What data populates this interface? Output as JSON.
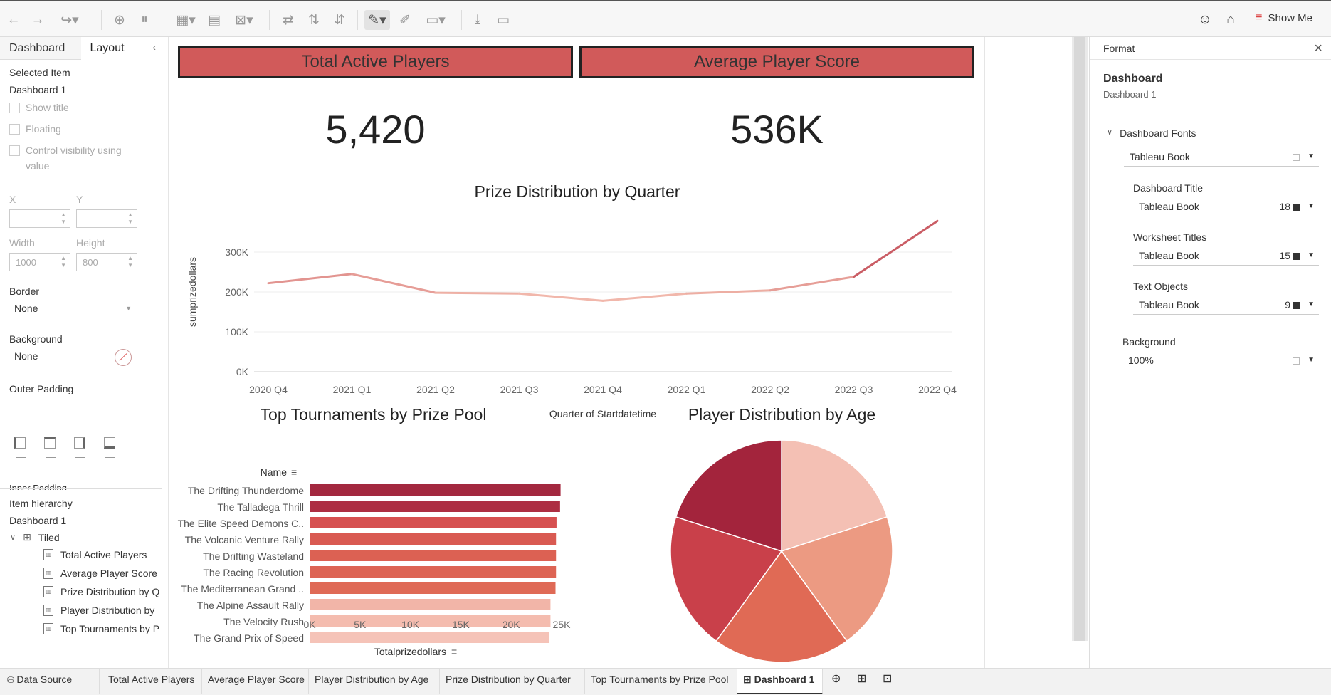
{
  "toolbar": {
    "show_me_label": "Show Me",
    "icons": [
      "back-icon",
      "forward-icon",
      "redo-icon",
      "new-datasource-icon",
      "pause-icon",
      "new-worksheet-icon",
      "duplicate-icon",
      "clear-icon",
      "swap-icon",
      "sort-asc-icon",
      "sort-desc-icon",
      "highlight-icon",
      "annotate-icon",
      "fit-icon",
      "download-icon",
      "presentation-icon",
      "share-icon",
      "pin-icon"
    ]
  },
  "left_panel": {
    "tabs": [
      "Dashboard",
      "Layout"
    ],
    "selected_item_heading": "Selected Item",
    "selected_item_value": "Dashboard 1",
    "show_title": "Show title",
    "floating": "Floating",
    "control_visibility": "Control visibility using value",
    "x_label": "X",
    "y_label": "Y",
    "width_label": "Width",
    "height_label": "Height",
    "width_value": "1000",
    "height_value": "800",
    "border_label": "Border",
    "border_value": "None",
    "background_label": "Background",
    "background_value": "None",
    "outer_padding_label": "Outer Padding",
    "inner_padding_label": "Inner Padding",
    "hierarchy_heading": "Item hierarchy",
    "hierarchy_root": "Dashboard 1",
    "tiled": "Tiled",
    "items": [
      "Total Active Players",
      "Average Player Score",
      "Prize Distribution by Q",
      "Player Distribution by",
      "Top Tournaments by P"
    ]
  },
  "dashboard": {
    "kpi1_title": "Total Active Players",
    "kpi1_value": "5,420",
    "kpi2_title": "Average Player Score",
    "kpi2_value": "536K",
    "line_title": "Prize Distribution by Quarter",
    "bar_title": "Top Tournaments by Prize Pool",
    "pie_title": "Player Distribution by Age"
  },
  "chart_data": [
    {
      "type": "line",
      "title": "Prize Distribution by Quarter",
      "categories": [
        "2020 Q4",
        "2021 Q1",
        "2021 Q2",
        "2021 Q3",
        "2021 Q4",
        "2022 Q1",
        "2022 Q2",
        "2022 Q3",
        "2022 Q4"
      ],
      "values": [
        222000,
        245000,
        198000,
        196000,
        178000,
        196000,
        204000,
        238000,
        378000
      ],
      "xlabel": "Quarter of Startdatetime",
      "ylabel": "sumprizedollars",
      "yticks": [
        "0K",
        "100K",
        "200K",
        "300K"
      ],
      "ylim": [
        0,
        400000
      ]
    },
    {
      "type": "bar",
      "title": "Top Tournaments by Prize Pool",
      "header": "Name",
      "categories": [
        "The Drifting Thunderdome",
        "The Talladega Thrill",
        "The Elite Speed Demons C..",
        "The Volcanic Venture Rally",
        "The Drifting Wasteland",
        "The Racing Revolution",
        "The Mediterranean Grand ..",
        "The Alpine Assault Rally",
        "The Velocity Rush",
        "The Grand Prix of Speed"
      ],
      "values": [
        24900,
        24850,
        24500,
        24450,
        24450,
        24450,
        24400,
        23900,
        23900,
        23800
      ],
      "colors": [
        "#a3283f",
        "#ad2e42",
        "#d65050",
        "#d95a52",
        "#dc6153",
        "#dd6454",
        "#df6a56",
        "#f2b5a8",
        "#f4bcaf",
        "#f5c3b8"
      ],
      "xlabel": "Totalprizedollars",
      "xticks": [
        "0K",
        "5K",
        "10K",
        "15K",
        "20K",
        "25K"
      ],
      "xlim": [
        0,
        25000
      ]
    },
    {
      "type": "pie",
      "title": "Player Distribution by Age",
      "values": [
        20,
        20,
        20,
        20,
        20
      ],
      "colors": [
        "#f4c0b4",
        "#ec9a82",
        "#e06a55",
        "#c9404a",
        "#a3243c"
      ]
    }
  ],
  "format_panel": {
    "header": "Format",
    "title": "Dashboard",
    "subtitle": "Dashboard 1",
    "fonts_heading": "Dashboard Fonts",
    "font_all": "Tableau Book",
    "dash_title_label": "Dashboard Title",
    "dash_title_font": "Tableau Book",
    "dash_title_size": "18",
    "ws_titles_label": "Worksheet Titles",
    "ws_titles_font": "Tableau Book",
    "ws_titles_size": "15",
    "text_obj_label": "Text Objects",
    "text_obj_font": "Tableau Book",
    "text_obj_size": "9",
    "background_label": "Background",
    "background_value": "100%"
  },
  "bottom_tabs": [
    "Data Source",
    "Total Active Players",
    "Average Player Score",
    "Player Distribution by Age",
    "Prize Distribution by Quarter",
    "Top Tournaments by Prize Pool",
    "Dashboard 1"
  ]
}
